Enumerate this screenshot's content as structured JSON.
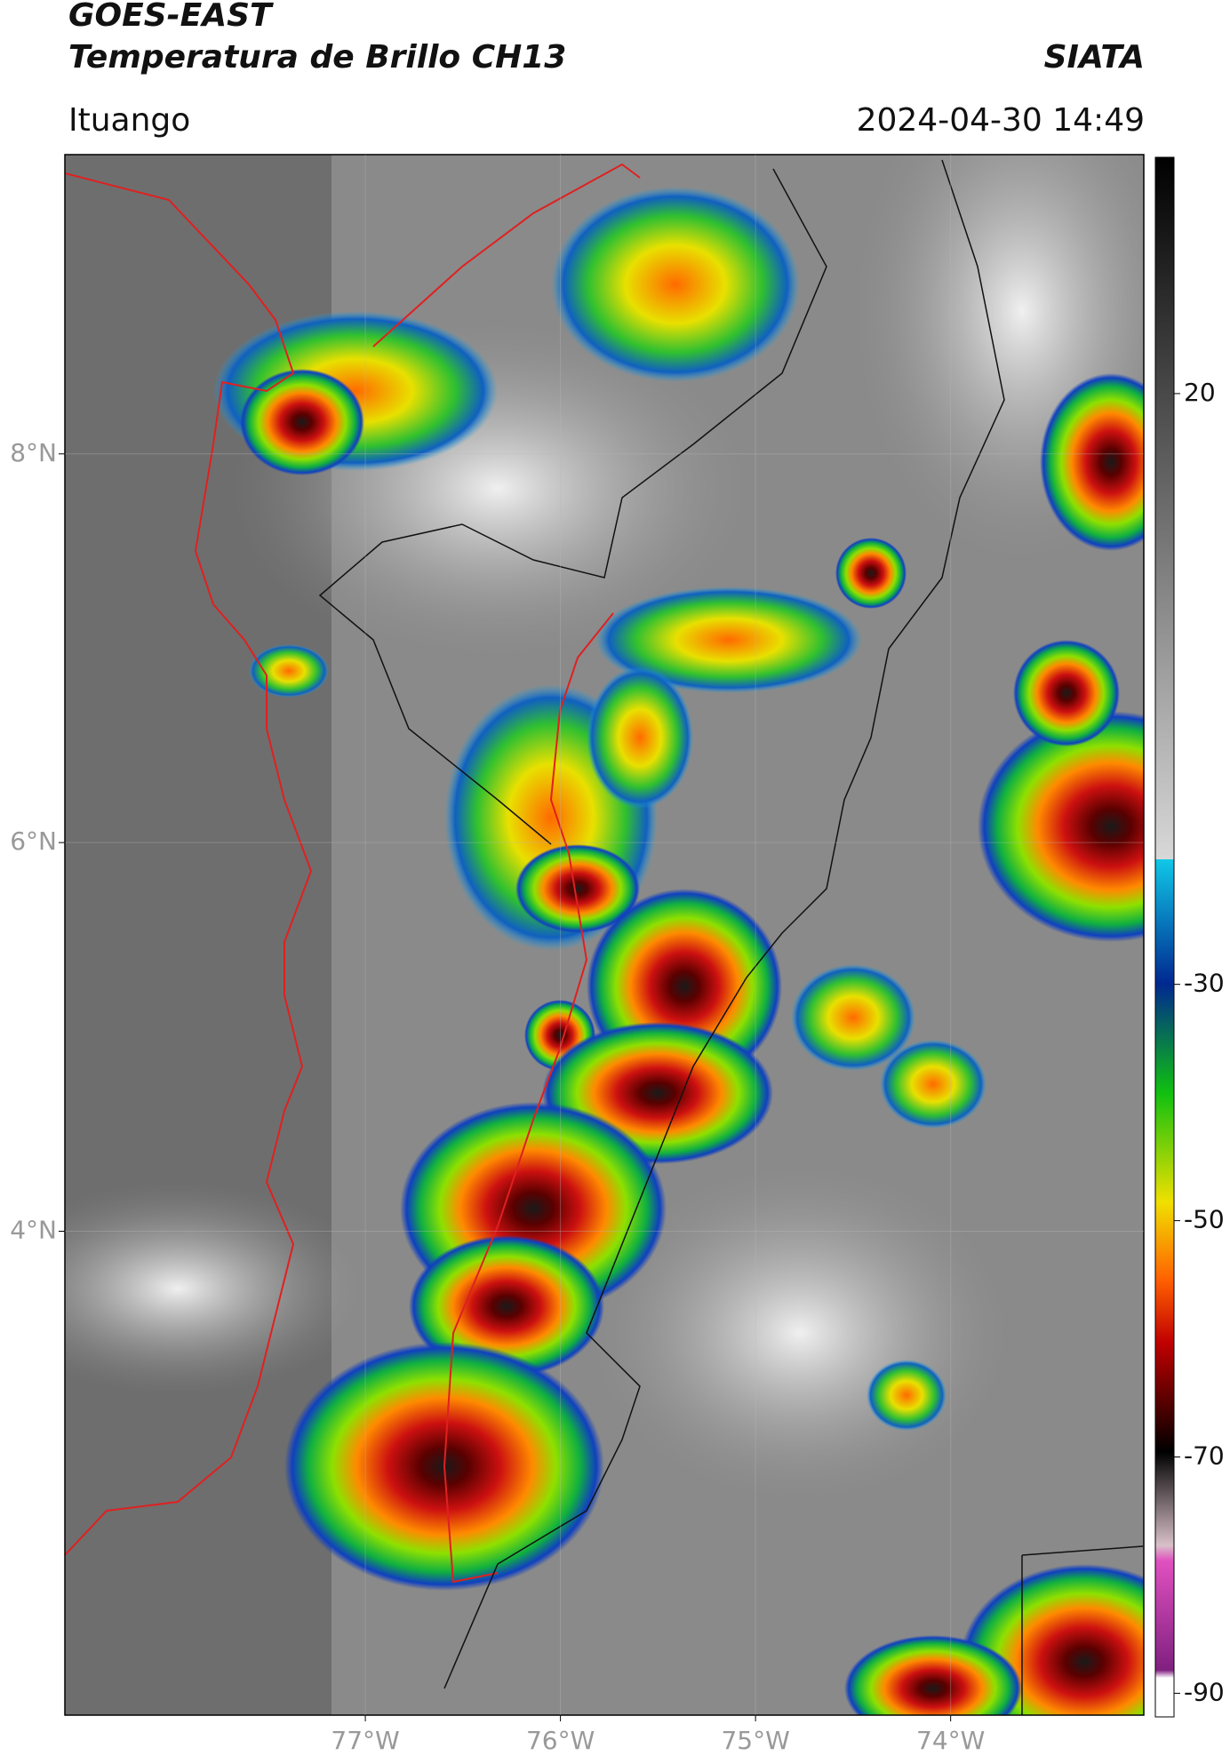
{
  "header": {
    "title": "GOES-EAST",
    "subtitle": "Temperatura de Brillo CH13",
    "source": "SIATA",
    "location": "Ituango",
    "datetime": "2024-04-30 14:49"
  },
  "map": {
    "lat_range": [
      1.51,
      9.54
    ],
    "lon_range": [
      -78.54,
      -73.01
    ],
    "lat_ticks": [
      {
        "value": 4,
        "label": "4°N"
      },
      {
        "value": 6,
        "label": "6°N"
      },
      {
        "value": 8,
        "label": "8°N"
      }
    ],
    "lon_ticks": [
      {
        "value": -77,
        "label": "77°W"
      },
      {
        "value": -76,
        "label": "76°W"
      },
      {
        "value": -75,
        "label": "75°W"
      },
      {
        "value": -74,
        "label": "74°W"
      }
    ]
  },
  "colorbar": {
    "range": [
      -92,
      40
    ],
    "ticks": [
      20,
      -30,
      -50,
      -70,
      -90
    ]
  }
}
